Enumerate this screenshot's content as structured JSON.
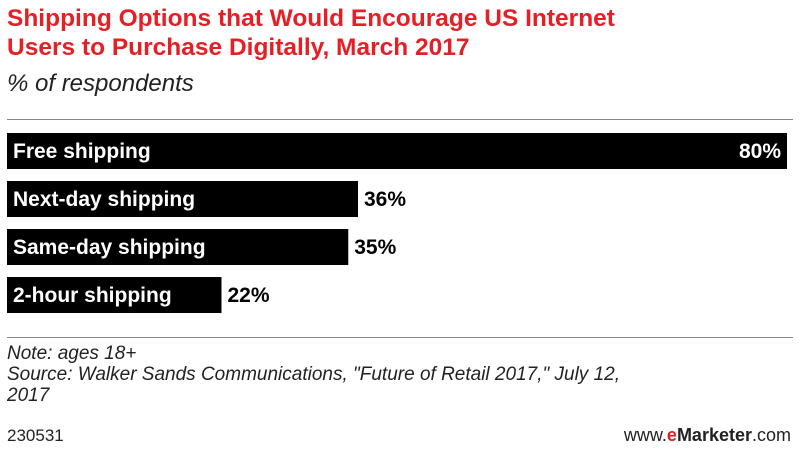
{
  "title_line1": "Shipping Options that Would Encourage US Internet",
  "title_line2": "Users to Purchase Digitally, March 2017",
  "subtitle": "% of respondents",
  "note": "Note: ages 18+",
  "source_line1": "Source: Walker Sands Communications, \"Future of Retail 2017,\" July 12,",
  "source_line2": "2017",
  "chart_id": "230531",
  "brand": {
    "prefix": "www.",
    "e": "e",
    "name": "Marketer",
    "suffix": ".com"
  },
  "colors": {
    "title": "#e41f26",
    "bar": "#000000",
    "bar_text": "#ffffff"
  },
  "chart_data": {
    "type": "bar",
    "orientation": "horizontal",
    "categories": [
      "Free shipping",
      "Next-day shipping",
      "Same-day shipping",
      "2-hour shipping"
    ],
    "values": [
      80,
      36,
      35,
      22
    ],
    "value_labels": [
      "80%",
      "36%",
      "35%",
      "22%"
    ],
    "unit": "%",
    "title": "Shipping Options that Would Encourage US Internet Users to Purchase Digitally, March 2017",
    "xlabel": "",
    "ylabel": "",
    "xlim": [
      0,
      80
    ],
    "grid": false,
    "legend": "none"
  }
}
